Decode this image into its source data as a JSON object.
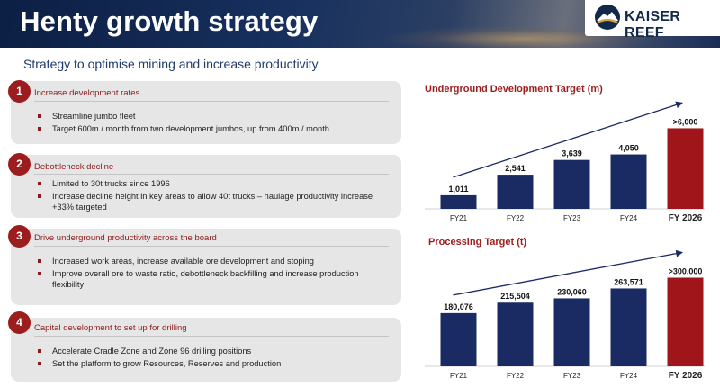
{
  "header": {
    "title": "Henty growth strategy"
  },
  "logo": {
    "text": "KAISER REEF"
  },
  "subtitle": "Strategy to optimise mining and increase productivity",
  "colors": {
    "accent": "#9b1d1d",
    "bar": "#1a2b63",
    "bar_highlight": "#a01519"
  },
  "strategies": [
    {
      "number": "1",
      "heading": "Increase development rates",
      "bullets": [
        "Streamline jumbo fleet",
        "Target 600m / month from two development jumbos, up from 400m / month"
      ]
    },
    {
      "number": "2",
      "heading": "Debottleneck decline",
      "bullets": [
        "Limited to 30t trucks since 1996",
        "Increase decline height in key areas to allow 40t trucks – haulage productivity increase +33% targeted"
      ]
    },
    {
      "number": "3",
      "heading": "Drive underground productivity across the board",
      "bullets": [
        "Increased work areas, increase available ore development and stoping",
        "Improve overall ore to waste ratio, debottleneck backfilling and increase production flexibility"
      ]
    },
    {
      "number": "4",
      "heading": "Capital development to set up for drilling",
      "bullets": [
        "Accelerate Cradle Zone and Zone 96 drilling positions",
        "Set the platform to grow Resources, Reserves and production"
      ]
    }
  ],
  "chart_data": [
    {
      "type": "bar",
      "title": "Underground Development Target (m)",
      "categories": [
        "FY21",
        "FY22",
        "FY23",
        "FY24",
        "FY 2026"
      ],
      "values": [
        1011,
        2541,
        3639,
        4050,
        6000
      ],
      "labels": [
        "1,011",
        "2,541",
        "3,639",
        "4,050",
        ">6,000"
      ],
      "highlight_index": 4,
      "ylim": [
        0,
        6700
      ],
      "trend_arrow": true
    },
    {
      "type": "bar",
      "title": "Processing Target (t)",
      "categories": [
        "FY21",
        "FY22",
        "FY23",
        "FY24",
        "FY 2026"
      ],
      "values": [
        180076,
        215504,
        230060,
        263571,
        300000
      ],
      "labels": [
        "180,076",
        "215,504",
        "230,060",
        "263,571",
        ">300,000"
      ],
      "highlight_index": 4,
      "ylim": [
        0,
        335000
      ],
      "trend_arrow": true
    }
  ]
}
